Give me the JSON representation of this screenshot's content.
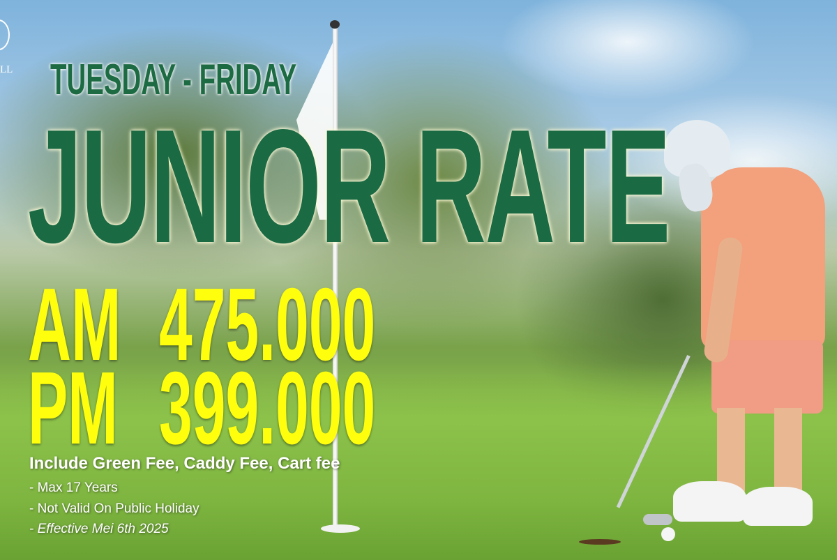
{
  "logo": {
    "text": "LL"
  },
  "header": {
    "days": "TUESDAY - FRIDAY",
    "title": "JUNIOR RATE"
  },
  "prices": [
    {
      "label": "AM",
      "value": "475.000"
    },
    {
      "label": "PM",
      "value": "399.000"
    }
  ],
  "includes": "Include Green Fee, Caddy Fee, Cart fee",
  "notes": [
    "- Max 17 Years",
    "- Not Valid On Public Holiday",
    "- Effective Mei 6th 2025"
  ],
  "colors": {
    "title_green": "#1a6a44",
    "price_yellow": "#ffff0d",
    "text_white": "#ffffff"
  }
}
